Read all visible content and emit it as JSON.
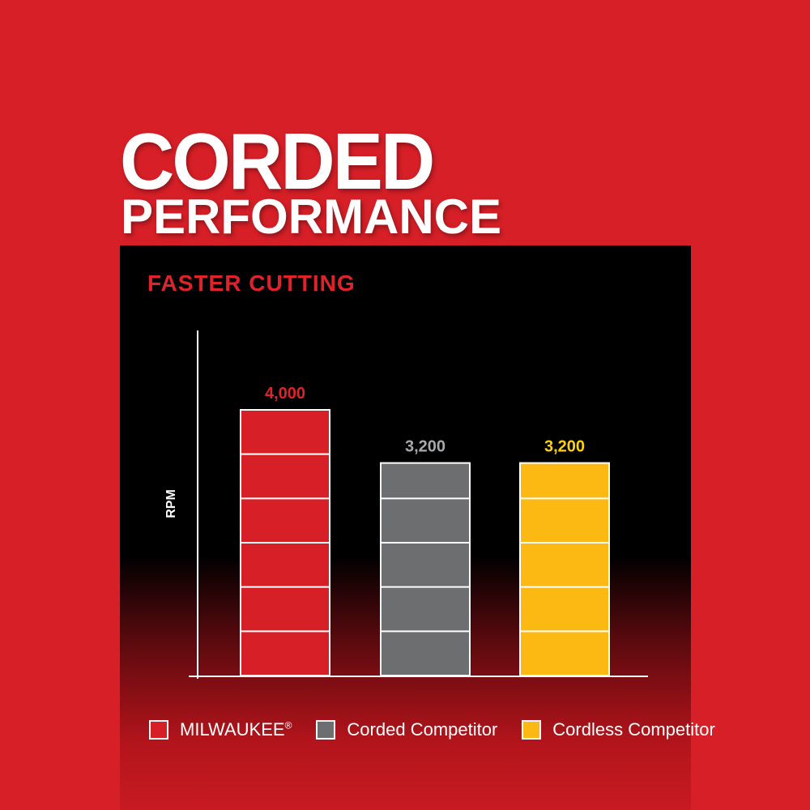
{
  "header": {
    "title_line1": "CORDED",
    "title_line2": "PERFORMANCE"
  },
  "chart_data": {
    "type": "bar",
    "title": "FASTER CUTTING",
    "ylabel": "RPM",
    "xlabel": "",
    "categories": [
      "MILWAUKEE®",
      "Corded Competitor",
      "Cordless Competitor"
    ],
    "values": [
      4000,
      3200,
      3200
    ],
    "value_labels": [
      "4,000",
      "3,200",
      "3,200"
    ],
    "colors": [
      "#d71f27",
      "#6d6e70",
      "#fdb913"
    ],
    "label_colors": [
      "#e0232b",
      "#a7a9ac",
      "#fdd20a"
    ],
    "ylim": [
      0,
      4000
    ],
    "grid": false,
    "legend": {
      "position": "bottom",
      "entries": [
        "MILWAUKEE",
        "Corded Competitor",
        "Cordless Competitor"
      ],
      "registered_mark": "®"
    }
  }
}
